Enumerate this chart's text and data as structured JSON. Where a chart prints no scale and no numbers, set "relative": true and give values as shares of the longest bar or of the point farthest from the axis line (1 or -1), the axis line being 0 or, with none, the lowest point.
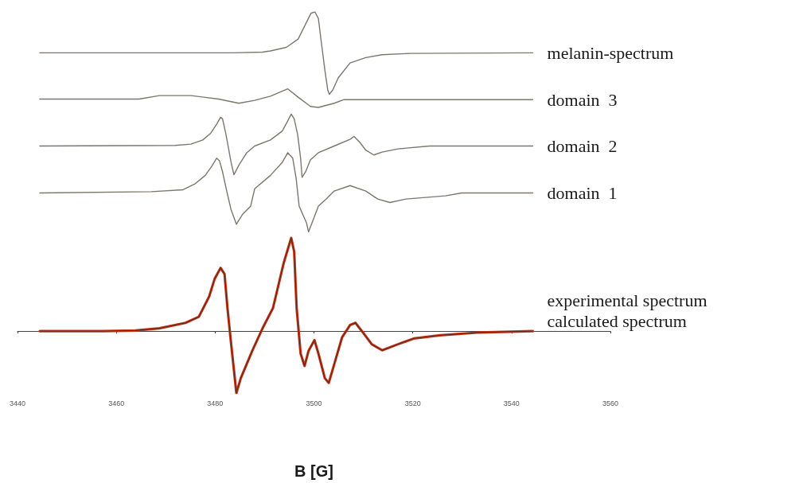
{
  "chart_data": {
    "type": "line",
    "relative": true,
    "xlabel": "B [G]",
    "xlim": [
      3440,
      3560
    ],
    "xticks": [
      3440,
      3460,
      3480,
      3500,
      3520,
      3540,
      3560
    ],
    "series": [
      {
        "name": "melanin-spectrum",
        "color": "#7d766c",
        "x": [
          3444.5,
          3483.6,
          3489.6,
          3491.2,
          3494.4,
          3496.8,
          3498.5,
          3499.4,
          3500.2,
          3500.9,
          3501.5,
          3502.2,
          3502.8,
          3503.1,
          3503.8,
          3504.9,
          3507.3,
          3510.5,
          3513.8,
          3519.4,
          3544.3
        ],
        "values": [
          0.872,
          0.872,
          0.874,
          0.878,
          0.889,
          0.915,
          0.968,
          0.996,
          1.0,
          0.979,
          0.904,
          0.819,
          0.755,
          0.742,
          0.755,
          0.793,
          0.84,
          0.857,
          0.866,
          0.87,
          0.872
        ]
      },
      {
        "name": "domain  3",
        "color": "#7d766c",
        "x": [
          3444.5,
          3464.6,
          3468.7,
          3475.1,
          3480.7,
          3484.8,
          3488.0,
          3491.2,
          3494.7,
          3496.8,
          3499.3,
          3500.9,
          3504.1,
          3506.0,
          3544.3
        ],
        "values": [
          0.727,
          0.727,
          0.738,
          0.738,
          0.727,
          0.714,
          0.723,
          0.736,
          0.759,
          0.733,
          0.704,
          0.701,
          0.714,
          0.725,
          0.725
        ]
      },
      {
        "name": "domain  2",
        "color": "#7d766c",
        "x": [
          3444.5,
          3471.9,
          3475.1,
          3477.5,
          3479.1,
          3480.3,
          3481.1,
          3481.5,
          3482.2,
          3483.2,
          3483.8,
          3484.8,
          3486.4,
          3488.0,
          3491.2,
          3493.6,
          3494.7,
          3495.4,
          3496.0,
          3496.7,
          3497.3,
          3497.6,
          3498.3,
          3499.3,
          3500.9,
          3504.1,
          3507.3,
          3508.1,
          3509.2,
          3510.5,
          3512.1,
          3513.8,
          3517.0,
          3523.4,
          3544.3
        ],
        "values": [
          0.58,
          0.582,
          0.586,
          0.599,
          0.62,
          0.648,
          0.67,
          0.665,
          0.616,
          0.531,
          0.49,
          0.52,
          0.559,
          0.58,
          0.599,
          0.627,
          0.659,
          0.68,
          0.665,
          0.616,
          0.542,
          0.482,
          0.499,
          0.537,
          0.559,
          0.58,
          0.601,
          0.61,
          0.593,
          0.567,
          0.552,
          0.561,
          0.571,
          0.58,
          0.58
        ]
      },
      {
        "name": "domain  1",
        "color": "#7d766c",
        "x": [
          3444.5,
          3467.1,
          3473.5,
          3475.9,
          3478.0,
          3479.3,
          3480.3,
          3480.9,
          3481.5,
          3482.4,
          3483.2,
          3484.3,
          3485.6,
          3487.2,
          3488.0,
          3491.2,
          3493.6,
          3494.7,
          3495.7,
          3496.4,
          3497.0,
          3498.5,
          3498.9,
          3499.6,
          3500.9,
          3502.5,
          3504.1,
          3507.3,
          3510.5,
          3512.9,
          3515.4,
          3518.6,
          3526.6,
          3529.9,
          3544.3
        ],
        "values": [
          0.433,
          0.437,
          0.443,
          0.461,
          0.488,
          0.516,
          0.542,
          0.533,
          0.499,
          0.435,
          0.382,
          0.335,
          0.367,
          0.392,
          0.446,
          0.488,
          0.529,
          0.559,
          0.542,
          0.478,
          0.392,
          0.339,
          0.311,
          0.339,
          0.392,
          0.414,
          0.439,
          0.456,
          0.439,
          0.414,
          0.403,
          0.414,
          0.424,
          0.433,
          0.433
        ]
      },
      {
        "name": "experimental spectrum",
        "color": "#d23a1c",
        "x": [
          3444.5,
          3457.4,
          3463.8,
          3468.7,
          3474.0,
          3476.7,
          3478.8,
          3479.9,
          3481.1,
          3481.9,
          3482.5,
          3483.2,
          3484.3,
          3485.2,
          3487.5,
          3489.6,
          3491.7,
          3493.9,
          3495.4,
          3496.0,
          3496.5,
          3497.3,
          3498.1,
          3498.9,
          3500.1,
          3500.9,
          3502.2,
          3503.0,
          3504.1,
          3505.7,
          3507.3,
          3508.4,
          3510.0,
          3511.7,
          3513.8,
          3517.0,
          3520.2,
          3525.5,
          3533.6,
          3544.3
        ],
        "values": [
          0,
          0,
          0.002,
          0.009,
          0.026,
          0.045,
          0.109,
          0.164,
          0.198,
          0.179,
          0.072,
          -0.034,
          -0.194,
          -0.147,
          -0.062,
          0.009,
          0.072,
          0.215,
          0.292,
          0.249,
          0.072,
          -0.07,
          -0.109,
          -0.062,
          -0.028,
          -0.07,
          -0.147,
          -0.162,
          -0.104,
          -0.019,
          0.019,
          0.026,
          -0.006,
          -0.041,
          -0.06,
          -0.041,
          -0.023,
          -0.013,
          -0.004,
          0
        ]
      },
      {
        "name": "calculated spectrum",
        "color": "#6b2a1a",
        "x": [
          3444.5,
          3457.4,
          3463.8,
          3468.7,
          3474.0,
          3476.7,
          3478.8,
          3479.9,
          3481.1,
          3481.9,
          3482.5,
          3483.2,
          3484.3,
          3485.2,
          3487.5,
          3489.6,
          3491.7,
          3493.9,
          3495.4,
          3496.0,
          3496.5,
          3497.3,
          3498.1,
          3498.9,
          3500.1,
          3500.9,
          3502.2,
          3503.0,
          3504.1,
          3505.7,
          3507.3,
          3508.4,
          3510.0,
          3511.7,
          3513.8,
          3517.0,
          3520.2,
          3525.5,
          3533.6,
          3544.3
        ],
        "values": [
          0,
          0,
          0.002,
          0.009,
          0.026,
          0.045,
          0.109,
          0.164,
          0.198,
          0.179,
          0.072,
          -0.034,
          -0.194,
          -0.147,
          -0.062,
          0.009,
          0.072,
          0.215,
          0.292,
          0.249,
          0.072,
          -0.07,
          -0.109,
          -0.062,
          -0.028,
          -0.07,
          -0.147,
          -0.162,
          -0.104,
          -0.019,
          0.019,
          0.026,
          -0.006,
          -0.041,
          -0.06,
          -0.041,
          -0.023,
          -0.013,
          -0.004,
          0
        ]
      }
    ]
  }
}
